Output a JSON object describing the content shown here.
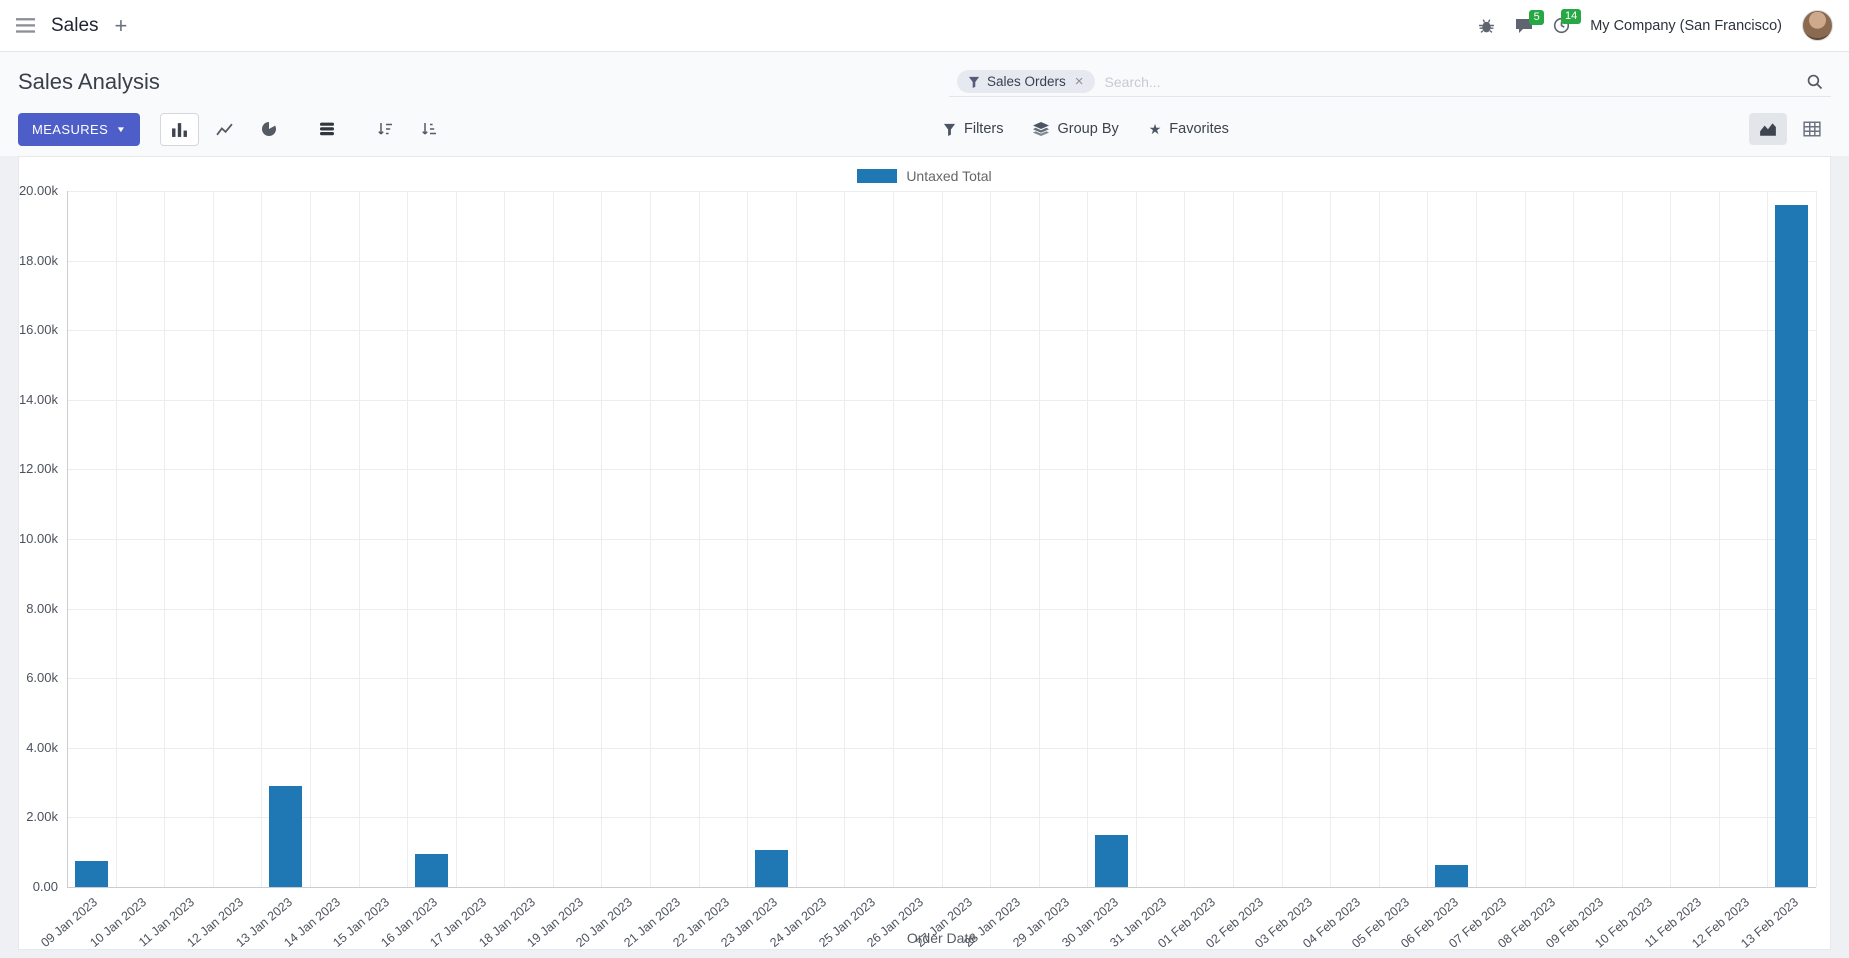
{
  "nav": {
    "app_name": "Sales",
    "company": "My Company (San Francisco)",
    "messages_badge": "5",
    "activities_badge": "14"
  },
  "icons": {
    "plus": "+",
    "caret_down": "▼",
    "star": "★",
    "close": "×"
  },
  "colors": {
    "primary": "#4d5ec8",
    "bar": "#1f77b4",
    "badge_green": "#28a745"
  },
  "control_panel": {
    "title": "Sales Analysis",
    "measures_label": "MEASURES",
    "filters_label": "Filters",
    "group_by_label": "Group By",
    "favorites_label": "Favorites",
    "search": {
      "facet_label": "Sales Orders",
      "placeholder": "Search..."
    }
  },
  "chart_data": {
    "type": "bar",
    "title": "",
    "xlabel": "Order Date",
    "ylabel": "",
    "grid": true,
    "legend_position": "top",
    "x_tick_rotation_deg": -40,
    "ylim": [
      0,
      20000
    ],
    "y_ticks": [
      "0.00",
      "2.00k",
      "4.00k",
      "6.00k",
      "8.00k",
      "10.00k",
      "12.00k",
      "14.00k",
      "16.00k",
      "18.00k",
      "20.00k"
    ],
    "categories": [
      "09 Jan 2023",
      "10 Jan 2023",
      "11 Jan 2023",
      "12 Jan 2023",
      "13 Jan 2023",
      "14 Jan 2023",
      "15 Jan 2023",
      "16 Jan 2023",
      "17 Jan 2023",
      "18 Jan 2023",
      "19 Jan 2023",
      "20 Jan 2023",
      "21 Jan 2023",
      "22 Jan 2023",
      "23 Jan 2023",
      "24 Jan 2023",
      "25 Jan 2023",
      "26 Jan 2023",
      "27 Jan 2023",
      "28 Jan 2023",
      "29 Jan 2023",
      "30 Jan 2023",
      "31 Jan 2023",
      "01 Feb 2023",
      "02 Feb 2023",
      "03 Feb 2023",
      "04 Feb 2023",
      "05 Feb 2023",
      "06 Feb 2023",
      "07 Feb 2023",
      "08 Feb 2023",
      "09 Feb 2023",
      "10 Feb 2023",
      "11 Feb 2023",
      "12 Feb 2023",
      "13 Feb 2023"
    ],
    "series": [
      {
        "name": "Untaxed Total",
        "values": [
          750,
          0,
          0,
          0,
          2900,
          0,
          0,
          950,
          0,
          0,
          0,
          0,
          0,
          0,
          1050,
          0,
          0,
          0,
          0,
          0,
          0,
          1500,
          0,
          0,
          0,
          0,
          0,
          0,
          620,
          0,
          0,
          0,
          0,
          0,
          0,
          19600
        ]
      }
    ]
  }
}
